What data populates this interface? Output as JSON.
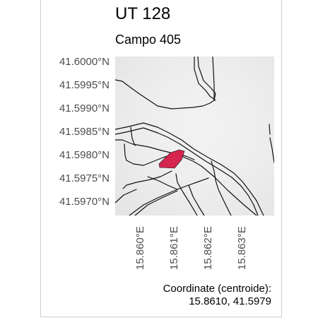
{
  "title": "UT 128",
  "subtitle": "Campo 405",
  "y_ticks": [
    "41.6000°N",
    "41.5995°N",
    "41.5990°N",
    "41.5985°N",
    "41.5980°N",
    "41.5975°N",
    "41.5970°N"
  ],
  "x_ticks": [
    "15.860°E",
    "15.861°E",
    "15.862°E",
    "15.863°E"
  ],
  "caption": {
    "line1": "Coordinate (centroide):",
    "line2": "15.8610, 41.5979"
  },
  "colors": {
    "parcel_fill": "#d4264f",
    "background": "#eeeeee",
    "lines": "#111111"
  }
}
